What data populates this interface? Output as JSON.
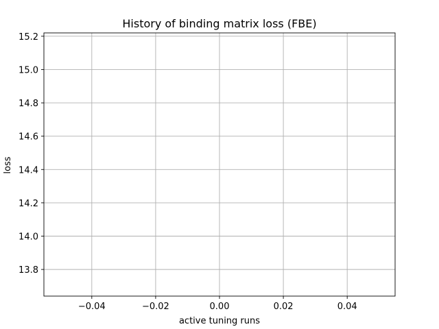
{
  "chart_data": {
    "type": "line",
    "title": "History of binding matrix loss (FBE)",
    "xlabel": "active tuning runs",
    "ylabel": "loss",
    "xlim": [
      -0.055,
      0.055
    ],
    "ylim": [
      13.64,
      15.22
    ],
    "xticks": [
      -0.04,
      -0.02,
      0.0,
      0.02,
      0.04
    ],
    "xtick_labels": [
      "−0.04",
      "−0.02",
      "0.00",
      "0.02",
      "0.04"
    ],
    "yticks": [
      13.8,
      14.0,
      14.2,
      14.4,
      14.6,
      14.8,
      15.0,
      15.2
    ],
    "ytick_labels": [
      "13.8",
      "14.0",
      "14.2",
      "14.4",
      "14.6",
      "14.8",
      "15.0",
      "15.2"
    ],
    "grid": true,
    "series": [
      {
        "x": [],
        "values": []
      }
    ]
  }
}
